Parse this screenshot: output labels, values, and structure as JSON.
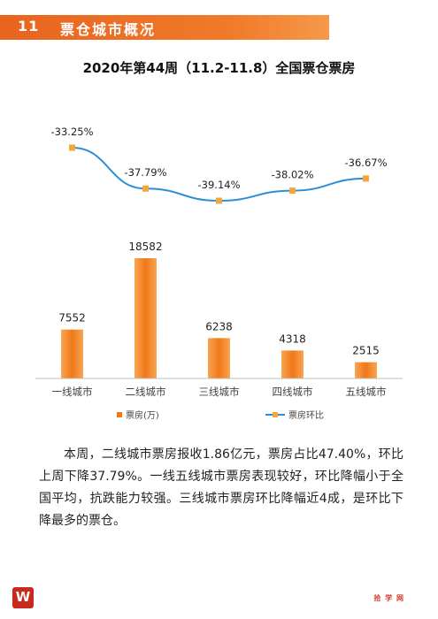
{
  "header": {
    "number": "11",
    "title": "票仓城市概况"
  },
  "chart_data": {
    "type": "bar+line",
    "title": "2020年第44周（11.2-11.8）全国票仓票房",
    "categories": [
      "一线城市",
      "二线城市",
      "三线城市",
      "四线城市",
      "五线城市"
    ],
    "series": [
      {
        "name": "票房(万)",
        "type": "bar",
        "values": [
          7552,
          18582,
          6238,
          4318,
          2515
        ],
        "labels": [
          "7552",
          "18582",
          "6238",
          "4318",
          "2515"
        ]
      },
      {
        "name": "票房环比",
        "type": "line",
        "values": [
          -33.25,
          -37.79,
          -39.14,
          -38.02,
          -36.67
        ],
        "labels": [
          "-33.25%",
          "-37.79%",
          "-39.14%",
          "-38.02%",
          "-36.67%"
        ]
      }
    ],
    "legend_position": "bottom",
    "colors": {
      "bar": "#f07818",
      "bar_light": "#f9a552",
      "line": "#2b8fd6",
      "marker": "#f2a73b"
    }
  },
  "paragraph": "本周，二线城市票房报收1.86亿元，票房占比47.40%，环比上周下降37.79%。一线五线城市票房表现较好，环比降幅小于全国平均，抗跌能力较强。三线城市票房环比降幅近4成，是环比下降最多的票仓。",
  "footer": {
    "logo_glyph": "W",
    "brand": "拾 学 网"
  }
}
